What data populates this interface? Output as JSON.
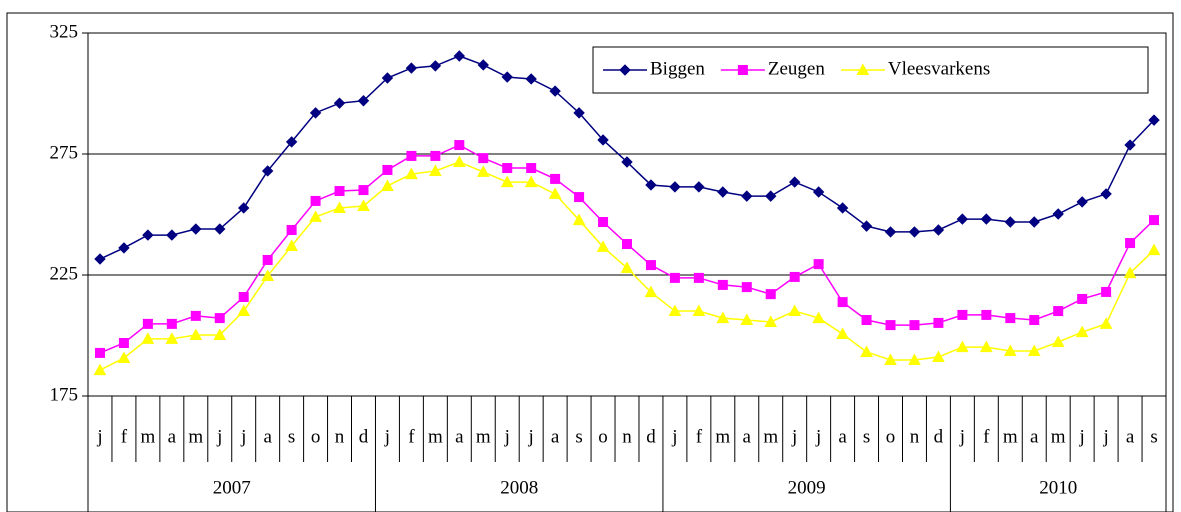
{
  "chart_data": {
    "type": "line",
    "categories": [
      "j",
      "f",
      "m",
      "a",
      "m",
      "j",
      "j",
      "a",
      "s",
      "o",
      "n",
      "d",
      "j",
      "f",
      "m",
      "a",
      "m",
      "j",
      "j",
      "a",
      "s",
      "o",
      "n",
      "d",
      "j",
      "f",
      "m",
      "a",
      "m",
      "j",
      "j",
      "a",
      "s",
      "o",
      "n",
      "d",
      "j",
      "f",
      "m",
      "a",
      "m",
      "j",
      "j",
      "a",
      "s"
    ],
    "groups": [
      "2007",
      "2008",
      "2009",
      "2010"
    ],
    "series": [
      {
        "name": "Biggen",
        "color": "#000080",
        "marker": "diamond",
        "values": [
          231.6,
          236.2,
          241.5,
          241.5,
          244,
          244,
          252.7,
          268,
          280,
          292,
          296,
          297,
          306.4,
          310.5,
          311.4,
          315.5,
          311.8,
          306.8,
          306,
          301,
          292,
          280.8,
          271.7,
          262.2,
          261.4,
          261.4,
          259.3,
          257.6,
          257.6,
          263.4,
          259.3,
          252.7,
          245.2,
          242.8,
          242.8,
          243.6,
          248.1,
          248.1,
          246.9,
          246.9,
          250.2,
          255.2,
          258.5,
          278.7,
          289
        ]
      },
      {
        "name": "Zeugen",
        "color": "#ff00ff",
        "marker": "square",
        "values": [
          192.8,
          196.9,
          204.8,
          204.8,
          208.1,
          207.2,
          215.9,
          231.2,
          243.6,
          255.6,
          259.7,
          260.1,
          268.4,
          274.2,
          274.2,
          278.7,
          273.3,
          269.2,
          269.2,
          264.7,
          257.2,
          246.9,
          237.8,
          229.1,
          223.8,
          223.8,
          220.9,
          220,
          217.1,
          224.2,
          229.5,
          213.8,
          206.4,
          204.3,
          204.3,
          205.2,
          208.5,
          208.5,
          207.2,
          206.4,
          210.1,
          215.1,
          218,
          238.2,
          247.7
        ]
      },
      {
        "name": "Vleesvarkens",
        "color": "#ffff00",
        "marker": "triangle",
        "values": [
          185.7,
          190.7,
          198.6,
          198.6,
          200.2,
          200.2,
          210.1,
          224.6,
          237,
          249,
          252.7,
          253.5,
          261.8,
          266.7,
          268,
          271.7,
          267.6,
          263.4,
          263.4,
          258.5,
          247.7,
          236.6,
          227.9,
          217.9,
          210.1,
          210.1,
          207.2,
          206.4,
          205.6,
          210.1,
          207.2,
          200.6,
          193.2,
          189.9,
          189.9,
          191.1,
          195.2,
          195.2,
          193.6,
          193.6,
          197.3,
          201.4,
          204.8,
          225.8,
          235.3
        ]
      }
    ],
    "ylim": [
      175,
      325
    ],
    "yticks": [
      175,
      225,
      275,
      325
    ],
    "grid": true,
    "legend": "top-right"
  }
}
